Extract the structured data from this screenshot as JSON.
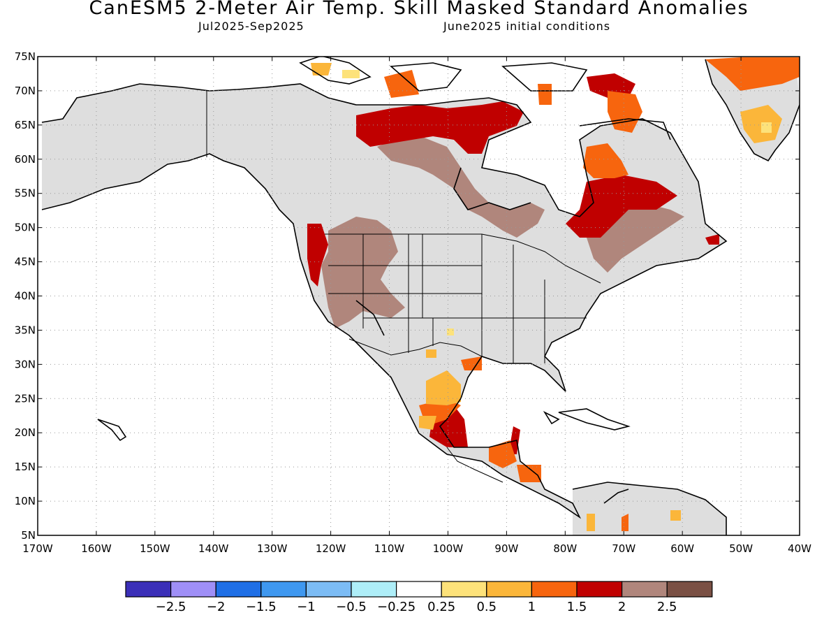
{
  "header": {
    "title": "CanESM5 2-Meter Air Temp. Skill Masked Standard Anomalies",
    "period": "Jul2025-Sep2025",
    "init": "June2025 initial conditions"
  },
  "axes": {
    "lat_labels": [
      "75N",
      "70N",
      "65N",
      "60N",
      "55N",
      "50N",
      "45N",
      "40N",
      "35N",
      "30N",
      "25N",
      "20N",
      "15N",
      "10N",
      "5N"
    ],
    "lon_labels": [
      "170W",
      "160W",
      "150W",
      "140W",
      "130W",
      "120W",
      "110W",
      "100W",
      "90W",
      "80W",
      "70W",
      "60W",
      "50W",
      "40W"
    ],
    "lat_range": [
      5,
      75
    ],
    "lon_range": [
      -170,
      -40
    ]
  },
  "colorbar": {
    "colors": [
      "#3b2fb8",
      "#9f8ff7",
      "#1f6fe6",
      "#3f98f0",
      "#7cbcf5",
      "#aeeef8",
      "#ffffff",
      "#fde27a",
      "#fbb63a",
      "#f7650e",
      "#c00000",
      "#b0867c",
      "#7a5044"
    ],
    "labels": [
      "-2.5",
      "-2",
      "-1.5",
      "-1",
      "-0.5",
      "-0.25",
      "0.25",
      "0.5",
      "1",
      "1.5",
      "2",
      "2.5"
    ]
  },
  "colors": {
    "land_masked": "#dedede",
    "ocean": "#ffffff",
    "coast": "#000000"
  }
}
